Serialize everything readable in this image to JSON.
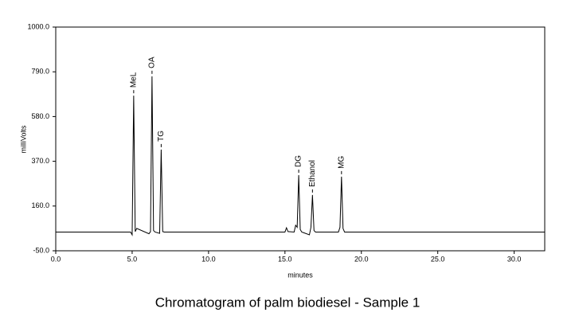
{
  "chart_data": {
    "type": "line",
    "title": "Chromatogram of palm biodiesel - Sample 1",
    "x_label": "minutes",
    "y_label": "milliVolts",
    "xlim": [
      0,
      32
    ],
    "ylim": [
      -50,
      1000
    ],
    "xticks": [
      {
        "value": 0,
        "label": "0.0"
      },
      {
        "value": 5,
        "label": "5.0"
      },
      {
        "value": 10,
        "label": "10.0"
      },
      {
        "value": 15,
        "label": "15.0"
      },
      {
        "value": 20,
        "label": "20.0"
      },
      {
        "value": 25,
        "label": "25.0"
      },
      {
        "value": 30,
        "label": "30.0"
      }
    ],
    "yticks": [
      {
        "value": -50,
        "label": "-50.0"
      },
      {
        "value": 160,
        "label": "160.0"
      },
      {
        "value": 370,
        "label": "370.0"
      },
      {
        "value": 580,
        "label": "580.0"
      },
      {
        "value": 790,
        "label": "790.0"
      },
      {
        "value": 1000,
        "label": "1000.0"
      }
    ],
    "series": [
      {
        "color": "#000000",
        "x": [
          0,
          4.9,
          5.0,
          5.1,
          5.2,
          5.3,
          6.1,
          6.2,
          6.3,
          6.4,
          6.5,
          6.8,
          6.9,
          7.0,
          7.1,
          15.0,
          15.1,
          15.2,
          15.6,
          15.7,
          15.8,
          15.9,
          16.0,
          16.1,
          16.6,
          16.7,
          16.8,
          16.9,
          17.0,
          18.5,
          18.6,
          18.7,
          18.8,
          18.9,
          32.0
        ],
        "values": [
          38,
          38,
          25,
          678,
          40,
          55,
          30,
          40,
          769,
          45,
          38,
          32,
          425,
          40,
          38,
          38,
          58,
          40,
          38,
          70,
          60,
          305,
          50,
          38,
          25,
          60,
          212,
          45,
          38,
          38,
          60,
          298,
          55,
          38,
          38
        ]
      }
    ],
    "annotations": [
      {
        "text": "MeL",
        "x": 5.1,
        "y": 678
      },
      {
        "text": "OA",
        "x": 6.3,
        "y": 769
      },
      {
        "text": "TG",
        "x": 6.9,
        "y": 425
      },
      {
        "text": "DG",
        "x": 15.9,
        "y": 305
      },
      {
        "text": "Ethanol",
        "x": 16.8,
        "y": 212
      },
      {
        "text": "MG",
        "x": 18.7,
        "y": 298
      }
    ]
  }
}
